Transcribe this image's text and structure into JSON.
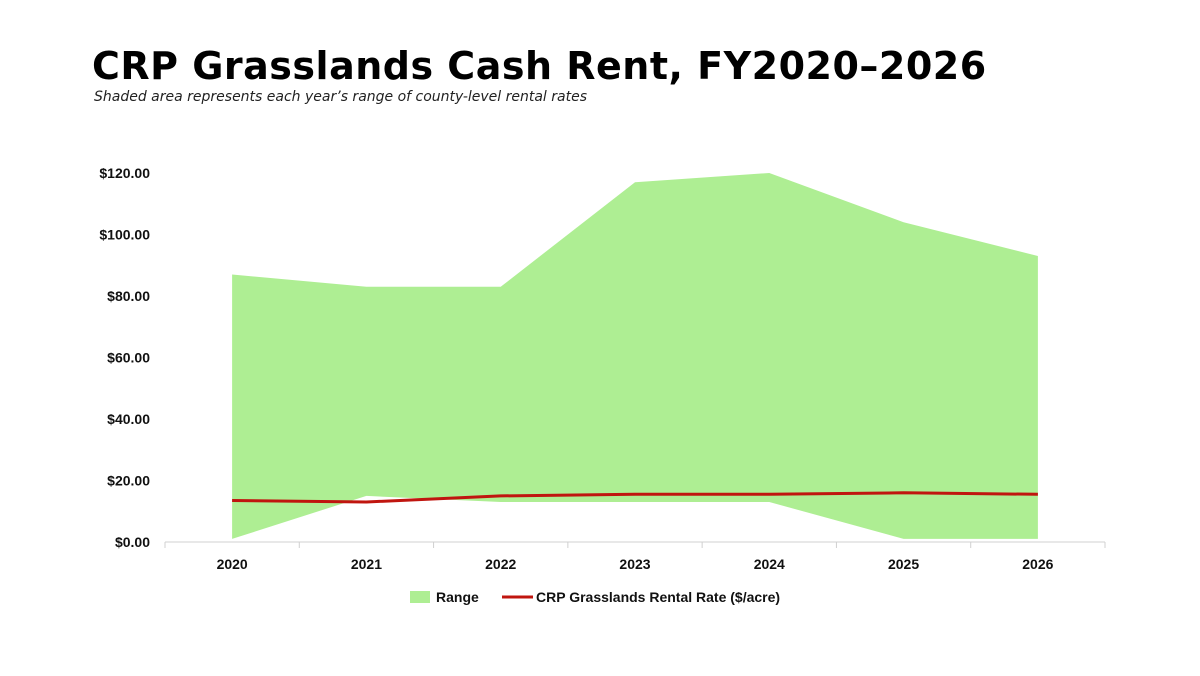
{
  "title": "CRP Grasslands Cash Rent, FY2020–2026",
  "subtitle": "Shaded area represents each year’s range of county-level rental rates",
  "colors": {
    "range_fill": "#aeee93",
    "line": "#c0150f",
    "axis": "#d0d0d0"
  },
  "chart_data": {
    "type": "area",
    "categories": [
      "2020",
      "2021",
      "2022",
      "2023",
      "2024",
      "2025",
      "2026"
    ],
    "y_ticks": [
      "$0.00",
      "$20.00",
      "$40.00",
      "$60.00",
      "$80.00",
      "$100.00",
      "$120.00"
    ],
    "ylim": [
      0,
      120
    ],
    "grid": false,
    "legend_position": "bottom",
    "series": [
      {
        "name": "Range",
        "kind": "range",
        "low": [
          1,
          15,
          13,
          13,
          13,
          1,
          1
        ],
        "high": [
          87,
          83,
          83,
          117,
          120,
          104,
          93
        ]
      },
      {
        "name": "CRP Grasslands Rental Rate ($/acre)",
        "kind": "line",
        "values": [
          13.5,
          13,
          15,
          15.5,
          15.5,
          16,
          15.5
        ]
      }
    ]
  }
}
